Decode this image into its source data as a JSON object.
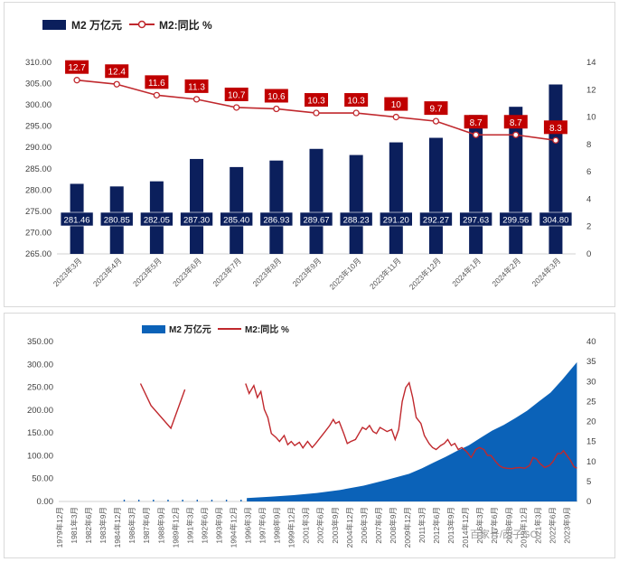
{
  "colors": {
    "bar": "#0b1f5c",
    "line": "#c0282d",
    "area": "#0b62b8",
    "label_bg_bar": "#0b1f5c",
    "label_bg_line": "#c00000"
  },
  "chart_data": [
    {
      "type": "bar",
      "legend": {
        "bar_label": "M2 万亿元",
        "line_label": "M2:同比 %",
        "placement": "top-left"
      },
      "categories": [
        "2023年3月",
        "2023年4月",
        "2023年5月",
        "2023年6月",
        "2023年7月",
        "2023年8月",
        "2023年9月",
        "2023年10月",
        "2023年11月",
        "2023年12月",
        "2024年1月",
        "2024年2月",
        "2024年3月"
      ],
      "series": [
        {
          "name": "M2 万亿元",
          "axis": "left",
          "values": [
            281.46,
            280.85,
            282.05,
            287.3,
            285.4,
            286.93,
            289.67,
            288.23,
            291.2,
            292.27,
            297.63,
            299.56,
            304.8
          ],
          "labels": [
            "281.46",
            "280.85",
            "282.05",
            "287.30",
            "285.40",
            "286.93",
            "289.67",
            "288.23",
            "291.20",
            "292.27",
            "297.63",
            "299.56",
            "304.80"
          ]
        },
        {
          "name": "M2:同比 %",
          "axis": "right",
          "type": "line",
          "values": [
            12.7,
            12.4,
            11.6,
            11.3,
            10.7,
            10.6,
            10.3,
            10.3,
            10.0,
            9.7,
            8.7,
            8.7,
            8.3
          ],
          "labels": [
            "12.7",
            "12.4",
            "11.6",
            "11.3",
            "10.7",
            "10.6",
            "10.3",
            "10.3",
            "10",
            "9.7",
            "8.7",
            "8.7",
            "8.3"
          ]
        }
      ],
      "ylim_left": [
        265,
        310
      ],
      "yticks_left": [
        "265.00",
        "270.00",
        "275.00",
        "280.00",
        "285.00",
        "290.00",
        "295.00",
        "300.00",
        "305.00",
        "310.00"
      ],
      "ylim_right": [
        0,
        14
      ],
      "yticks_right": [
        "0",
        "2",
        "4",
        "6",
        "8",
        "10",
        "12",
        "14"
      ],
      "grid": false
    },
    {
      "type": "area",
      "legend": {
        "area_label": "M2 万亿元",
        "line_label": "M2:同比 %",
        "placement": "top-center"
      },
      "xticks": [
        "1979年12月",
        "1981年3月",
        "1982年6月",
        "1983年9月",
        "1984年12月",
        "1986年3月",
        "1987年6月",
        "1988年9月",
        "1989年12月",
        "1991年3月",
        "1992年6月",
        "1993年9月",
        "1994年12月",
        "1996年3月",
        "1997年6月",
        "1998年9月",
        "1999年12月",
        "2001年3月",
        "2002年6月",
        "2003年9月",
        "2004年12月",
        "2006年3月",
        "2007年6月",
        "2008年9月",
        "2009年12月",
        "2011年3月",
        "2012年6月",
        "2013年9月",
        "2014年12月",
        "2016年3月",
        "2017年6月",
        "2018年9月",
        "2019年12月",
        "2021年3月",
        "2022年6月",
        "2023年9月"
      ],
      "ylim_left": [
        0,
        350
      ],
      "yticks_left": [
        "0.00",
        "50.00",
        "100.00",
        "150.00",
        "200.00",
        "250.00",
        "300.00",
        "350.00"
      ],
      "ylim_right": [
        0,
        40
      ],
      "yticks_right": [
        "0",
        "5",
        "10",
        "15",
        "20",
        "25",
        "30",
        "35",
        "40"
      ],
      "m2_points": [
        [
          1985.0,
          1.0
        ],
        [
          1990.0,
          1.5
        ],
        [
          1995.0,
          3.0
        ],
        [
          1996.0,
          7.6
        ],
        [
          1998.0,
          10.4
        ],
        [
          2000.0,
          13.8
        ],
        [
          2002.0,
          18.5
        ],
        [
          2004.0,
          25.3
        ],
        [
          2006.0,
          34.6
        ],
        [
          2008.0,
          47.5
        ],
        [
          2009.9,
          60.6
        ],
        [
          2011.0,
          72.6
        ],
        [
          2012.0,
          85.2
        ],
        [
          2013.0,
          97.4
        ],
        [
          2014.0,
          110.7
        ],
        [
          2015.0,
          122.8
        ],
        [
          2016.0,
          139.2
        ],
        [
          2017.0,
          155.0
        ],
        [
          2018.0,
          167.7
        ],
        [
          2019.0,
          182.7
        ],
        [
          2020.0,
          198.7
        ],
        [
          2021.0,
          218.7
        ],
        [
          2022.0,
          238.3
        ],
        [
          2023.0,
          266.4
        ],
        [
          2024.25,
          304.8
        ]
      ],
      "yoy_segment_1": [
        [
          1986.9,
          29.5
        ],
        [
          1987.8,
          24.0
        ],
        [
          1989.5,
          18.3
        ],
        [
          1990.7,
          28.0
        ]
      ],
      "yoy_segment_2": [
        [
          1995.9,
          29.5
        ],
        [
          1996.2,
          27.0
        ],
        [
          1996.6,
          29.0
        ],
        [
          1996.9,
          26.0
        ],
        [
          1997.2,
          27.5
        ],
        [
          1997.5,
          23.0
        ],
        [
          1997.8,
          21.0
        ],
        [
          1998.1,
          17.0
        ],
        [
          1998.5,
          16.0
        ],
        [
          1998.8,
          15.0
        ],
        [
          1999.2,
          16.5
        ],
        [
          1999.5,
          14.2
        ],
        [
          1999.8,
          15.0
        ],
        [
          2000.1,
          14.0
        ],
        [
          2000.5,
          14.8
        ],
        [
          2000.8,
          13.4
        ],
        [
          2001.2,
          15.0
        ],
        [
          2001.6,
          13.5
        ],
        [
          2001.9,
          14.5
        ],
        [
          2002.3,
          16.0
        ],
        [
          2002.7,
          17.5
        ],
        [
          2003.1,
          19.0
        ],
        [
          2003.4,
          20.5
        ],
        [
          2003.6,
          19.5
        ],
        [
          2003.9,
          20.0
        ],
        [
          2004.3,
          17.0
        ],
        [
          2004.6,
          14.5
        ],
        [
          2004.9,
          15.0
        ],
        [
          2005.3,
          15.5
        ],
        [
          2005.6,
          17.0
        ],
        [
          2005.9,
          18.5
        ],
        [
          2006.2,
          18.0
        ],
        [
          2006.5,
          19.0
        ],
        [
          2006.8,
          17.5
        ],
        [
          2007.1,
          17.0
        ],
        [
          2007.4,
          18.5
        ],
        [
          2007.7,
          18.0
        ],
        [
          2008.0,
          17.5
        ],
        [
          2008.4,
          18.0
        ],
        [
          2008.7,
          15.5
        ],
        [
          2009.0,
          18.0
        ],
        [
          2009.3,
          25.0
        ],
        [
          2009.6,
          28.5
        ],
        [
          2009.9,
          29.7
        ],
        [
          2010.2,
          26.0
        ],
        [
          2010.5,
          21.0
        ],
        [
          2010.9,
          19.5
        ],
        [
          2011.2,
          16.5
        ],
        [
          2011.6,
          14.5
        ],
        [
          2011.9,
          13.5
        ],
        [
          2012.2,
          13.0
        ],
        [
          2012.6,
          14.0
        ],
        [
          2012.9,
          14.5
        ],
        [
          2013.2,
          15.5
        ],
        [
          2013.5,
          14.0
        ],
        [
          2013.8,
          14.5
        ],
        [
          2014.1,
          13.0
        ],
        [
          2014.4,
          13.5
        ],
        [
          2014.8,
          12.5
        ],
        [
          2015.2,
          11.0
        ],
        [
          2015.6,
          13.0
        ],
        [
          2015.9,
          13.5
        ],
        [
          2016.3,
          13.0
        ],
        [
          2016.6,
          11.5
        ],
        [
          2016.9,
          11.5
        ],
        [
          2017.3,
          10.0
        ],
        [
          2017.6,
          9.0
        ],
        [
          2017.9,
          8.5
        ],
        [
          2018.3,
          8.3
        ],
        [
          2018.7,
          8.2
        ],
        [
          2019.0,
          8.4
        ],
        [
          2019.4,
          8.5
        ],
        [
          2019.8,
          8.3
        ],
        [
          2020.2,
          9.0
        ],
        [
          2020.5,
          11.0
        ],
        [
          2020.8,
          10.6
        ],
        [
          2021.1,
          9.5
        ],
        [
          2021.5,
          8.5
        ],
        [
          2021.9,
          9.0
        ],
        [
          2022.2,
          10.0
        ],
        [
          2022.6,
          12.0
        ],
        [
          2022.9,
          12.0
        ],
        [
          2023.1,
          12.7
        ],
        [
          2023.4,
          11.5
        ],
        [
          2023.7,
          10.3
        ],
        [
          2024.0,
          8.7
        ],
        [
          2024.25,
          8.3
        ]
      ],
      "grid": false
    }
  ],
  "watermark": "百家号/西子GO"
}
